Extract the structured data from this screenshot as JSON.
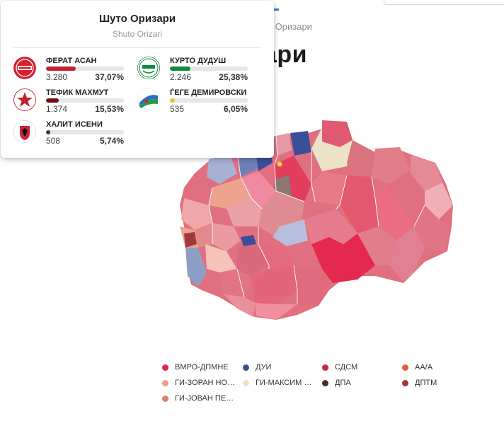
{
  "page": {
    "breadcrumb": "то Оризари",
    "title": "ари"
  },
  "tooltip": {
    "title": "Шуто Оризари",
    "subtitle": "Shuto Orizari",
    "candidates": [
      {
        "name": "ФЕРАТ АСАН",
        "votes": "3.280",
        "pct": "37,07%",
        "share": 0.3707,
        "color": "#c3202f",
        "logo": "sdsm-logo"
      },
      {
        "name": "КУРТО ДУДУШ",
        "votes": "2.246",
        "pct": "25,38%",
        "share": 0.2538,
        "color": "#0f8a3c",
        "logo": "roma-party-logo"
      },
      {
        "name": "ТЕФИК МАХМУТ",
        "votes": "1.374",
        "pct": "15,53%",
        "share": 0.1553,
        "color": "#6b0f14",
        "logo": "star-party-logo"
      },
      {
        "name": "ЃЕГЕ ДЕМИРОВСКИ",
        "votes": "535",
        "pct": "6,05%",
        "share": 0.0605,
        "color": "#f2c230",
        "logo": "flag-party-logo"
      },
      {
        "name": "ХАЛИТ ИСЕНИ",
        "votes": "508",
        "pct": "5,74%",
        "share": 0.0574,
        "color": "#5a2e1c",
        "logo": "eagle-party-logo"
      }
    ]
  },
  "legend": [
    {
      "label": "ВМРО-ДПМНЕ",
      "color": "#e2254d"
    },
    {
      "label": "ДУИ",
      "color": "#3a4f9a"
    },
    {
      "label": "СДСМ",
      "color": "#c72a3d"
    },
    {
      "label": "АА/А",
      "color": "#e0623c"
    },
    {
      "label": "ГИ-ЗОРАН НО…",
      "color": "#eda08a"
    },
    {
      "label": "ГИ-МАКСИМ …",
      "color": "#ece3c7"
    },
    {
      "label": "ДПА",
      "color": "#4a2e22"
    },
    {
      "label": "ДПТМ",
      "color": "#a03a3a"
    },
    {
      "label": "ГИ-ЈОВАН ПЕ…",
      "color": "#d9816e"
    }
  ]
}
